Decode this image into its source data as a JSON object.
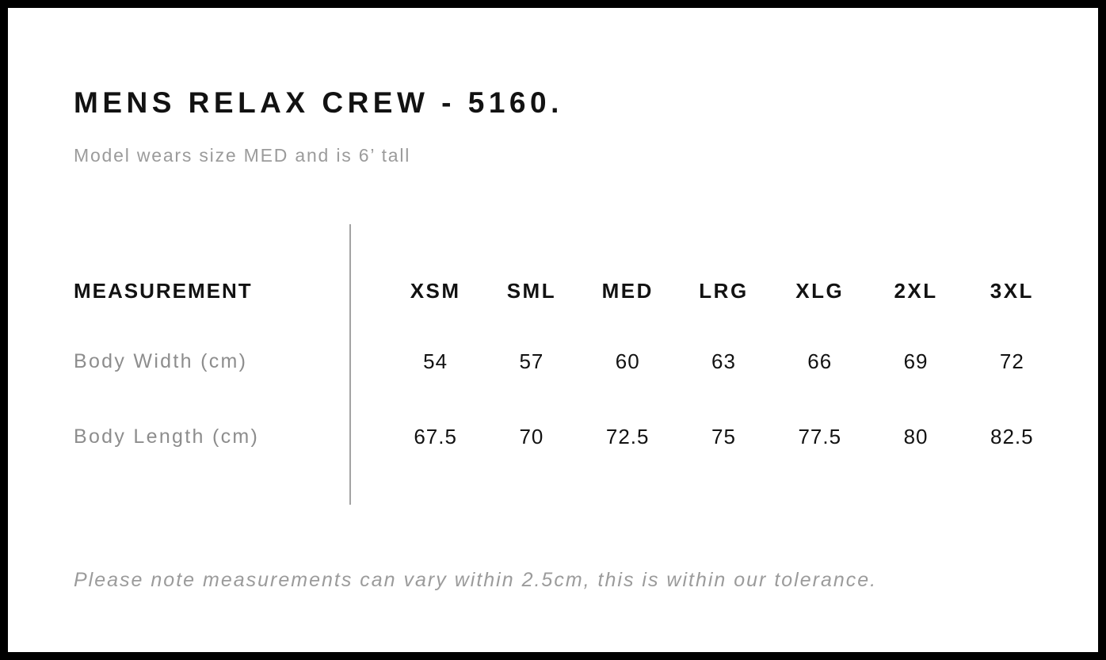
{
  "page": {
    "title": "MENS RELAX CREW - 5160.",
    "subtitle": "Model wears size MED and is 6’ tall",
    "footnote": "Please note measurements can vary within 2.5cm, this is within our tolerance."
  },
  "size_chart": {
    "header_label": "MEASUREMENT",
    "sizes": [
      "XSM",
      "SML",
      "MED",
      "LRG",
      "XLG",
      "2XL",
      "3XL"
    ],
    "rows": [
      {
        "label": "Body Width (cm)",
        "values": [
          "54",
          "57",
          "60",
          "63",
          "66",
          "69",
          "72"
        ]
      },
      {
        "label": "Body Length (cm)",
        "values": [
          "67.5",
          "70",
          "72.5",
          "75",
          "77.5",
          "80",
          "82.5"
        ]
      }
    ]
  },
  "colors": {
    "frame_border": "#000000",
    "text_primary": "#121212",
    "text_secondary": "#9b9b9b",
    "row_label_gray": "#8d8d8d",
    "divider_gray": "#a3a3a3",
    "background": "#ffffff"
  },
  "chart_data": {
    "type": "table",
    "title": "MENS RELAX CREW - 5160.",
    "subtitle": "Model wears size MED and is 6’ tall",
    "columns": [
      "MEASUREMENT",
      "XSM",
      "SML",
      "MED",
      "LRG",
      "XLG",
      "2XL",
      "3XL"
    ],
    "rows": [
      [
        "Body Width (cm)",
        54,
        57,
        60,
        63,
        66,
        69,
        72
      ],
      [
        "Body Length (cm)",
        67.5,
        70,
        72.5,
        75,
        77.5,
        80,
        82.5
      ]
    ],
    "footnote": "Please note measurements can vary within 2.5cm, this is within our tolerance.",
    "layout": "left label column separated from size columns by a vertical gray rule; black frame around page"
  }
}
